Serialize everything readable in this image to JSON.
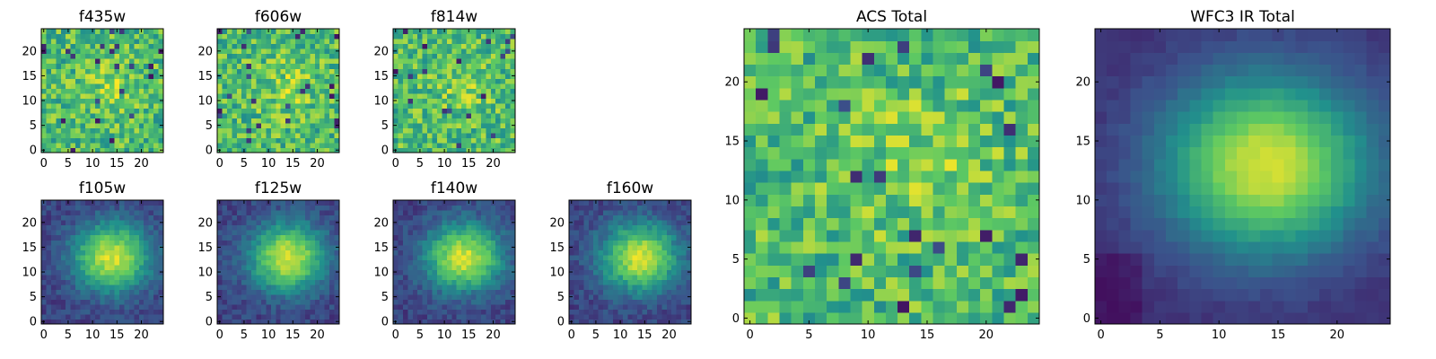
{
  "chart_data": {
    "type": "heatmap",
    "colormap": "viridis",
    "colormap_stops": [
      "#440154",
      "#3b528b",
      "#21918c",
      "#5ec962",
      "#fde725"
    ],
    "grid_size": [
      25,
      25
    ],
    "panels": [
      {
        "id": "f435w",
        "title": "f435w",
        "kind": "acs",
        "xticks": [
          "0",
          "5",
          "10",
          "15",
          "20"
        ],
        "yticks": [
          "0",
          "5",
          "10",
          "15",
          "20"
        ],
        "xlim": [
          0,
          25
        ],
        "ylim": [
          0,
          25
        ]
      },
      {
        "id": "f606w",
        "title": "f606w",
        "kind": "acs",
        "xticks": [
          "0",
          "5",
          "10",
          "15",
          "20"
        ],
        "yticks": [
          "0",
          "5",
          "10",
          "15",
          "20"
        ],
        "xlim": [
          0,
          25
        ],
        "ylim": [
          0,
          25
        ]
      },
      {
        "id": "f814w",
        "title": "f814w",
        "kind": "acs",
        "xticks": [
          "0",
          "5",
          "10",
          "15",
          "20"
        ],
        "yticks": [
          "0",
          "5",
          "10",
          "15",
          "20"
        ],
        "xlim": [
          0,
          25
        ],
        "ylim": [
          0,
          25
        ]
      },
      {
        "id": "f105w",
        "title": "f105w",
        "kind": "ir",
        "xticks": [
          "0",
          "5",
          "10",
          "15",
          "20"
        ],
        "yticks": [
          "0",
          "5",
          "10",
          "15",
          "20"
        ],
        "xlim": [
          0,
          25
        ],
        "ylim": [
          0,
          25
        ]
      },
      {
        "id": "f125w",
        "title": "f125w",
        "kind": "ir",
        "xticks": [
          "0",
          "5",
          "10",
          "15",
          "20"
        ],
        "yticks": [
          "0",
          "5",
          "10",
          "15",
          "20"
        ],
        "xlim": [
          0,
          25
        ],
        "ylim": [
          0,
          25
        ]
      },
      {
        "id": "f140w",
        "title": "f140w",
        "kind": "ir",
        "xticks": [
          "0",
          "5",
          "10",
          "15",
          "20"
        ],
        "yticks": [
          "0",
          "5",
          "10",
          "15",
          "20"
        ],
        "xlim": [
          0,
          25
        ],
        "ylim": [
          0,
          25
        ]
      },
      {
        "id": "f160w",
        "title": "f160w",
        "kind": "ir",
        "xticks": [
          "0",
          "5",
          "10",
          "15",
          "20"
        ],
        "yticks": [
          "0",
          "5",
          "10",
          "15",
          "20"
        ],
        "xlim": [
          0,
          25
        ],
        "ylim": [
          0,
          25
        ]
      },
      {
        "id": "acs",
        "title": "ACS Total",
        "kind": "acs",
        "xticks": [
          "0",
          "5",
          "10",
          "15",
          "20"
        ],
        "yticks": [
          "0",
          "5",
          "10",
          "15",
          "20"
        ],
        "xlim": [
          0,
          25
        ],
        "ylim": [
          0,
          25
        ]
      },
      {
        "id": "ir",
        "title": "WFC3 IR Total",
        "kind": "irtot",
        "xticks": [
          "0",
          "5",
          "10",
          "15",
          "20"
        ],
        "yticks": [
          "0",
          "5",
          "10",
          "15",
          "20"
        ],
        "xlim": [
          0,
          25
        ],
        "ylim": [
          0,
          25
        ]
      }
    ],
    "source_center": [
      14,
      13
    ]
  }
}
